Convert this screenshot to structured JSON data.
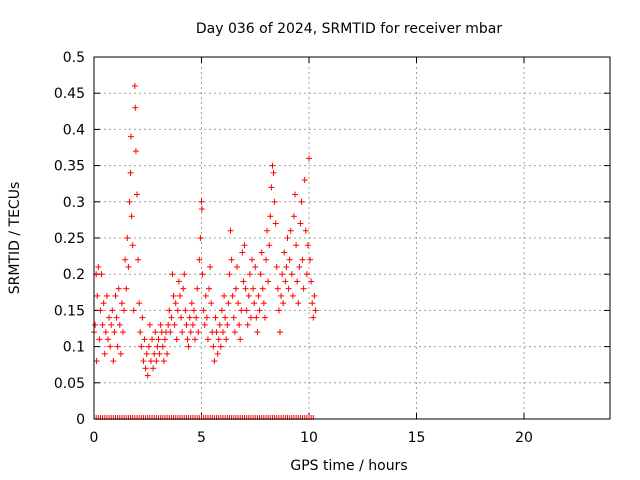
{
  "chart_data": {
    "type": "scatter",
    "title": "Day 036 of 2024, SRMTID for receiver mbar",
    "xlabel": "GPS time / hours",
    "ylabel": "SRMTID / TECUs",
    "xlim": [
      0,
      24
    ],
    "ylim": [
      0,
      0.5
    ],
    "xticks": [
      0,
      5,
      10,
      15,
      20
    ],
    "xtick_labels": [
      "0",
      "5",
      "10",
      "15",
      "20"
    ],
    "yticks": [
      0,
      0.05,
      0.1,
      0.15,
      0.2,
      0.25,
      0.3,
      0.35,
      0.4,
      0.45,
      0.5
    ],
    "ytick_labels": [
      "0",
      "0.05",
      "0.1",
      "0.15",
      "0.2",
      "0.25",
      "0.3",
      "0.35",
      "0.4",
      "0.45",
      "0.5"
    ],
    "grid": true,
    "marker": "+",
    "color": "#ff0000",
    "series": [
      {
        "name": "SRMTID",
        "points": [
          [
            0.0,
            0.12
          ],
          [
            0.05,
            0.13
          ],
          [
            0.1,
            0.2
          ],
          [
            0.12,
            0.08
          ],
          [
            0.15,
            0.17
          ],
          [
            0.2,
            0.21
          ],
          [
            0.25,
            0.11
          ],
          [
            0.3,
            0.15
          ],
          [
            0.35,
            0.2
          ],
          [
            0.4,
            0.13
          ],
          [
            0.45,
            0.16
          ],
          [
            0.5,
            0.09
          ],
          [
            0.55,
            0.12
          ],
          [
            0.6,
            0.17
          ],
          [
            0.65,
            0.11
          ],
          [
            0.7,
            0.14
          ],
          [
            0.75,
            0.1
          ],
          [
            0.8,
            0.13
          ],
          [
            0.85,
            0.15
          ],
          [
            0.9,
            0.08
          ],
          [
            0.95,
            0.12
          ],
          [
            1.0,
            0.17
          ],
          [
            1.05,
            0.14
          ],
          [
            1.1,
            0.1
          ],
          [
            1.15,
            0.18
          ],
          [
            1.2,
            0.13
          ],
          [
            1.25,
            0.09
          ],
          [
            1.3,
            0.16
          ],
          [
            1.35,
            0.12
          ],
          [
            1.4,
            0.15
          ],
          [
            1.45,
            0.22
          ],
          [
            1.5,
            0.18
          ],
          [
            1.55,
            0.25
          ],
          [
            1.6,
            0.21
          ],
          [
            1.65,
            0.3
          ],
          [
            1.7,
            0.34
          ],
          [
            1.72,
            0.39
          ],
          [
            1.75,
            0.28
          ],
          [
            1.8,
            0.24
          ],
          [
            1.85,
            0.15
          ],
          [
            1.9,
            0.46
          ],
          [
            1.92,
            0.43
          ],
          [
            1.95,
            0.37
          ],
          [
            2.0,
            0.31
          ],
          [
            2.05,
            0.22
          ],
          [
            2.1,
            0.16
          ],
          [
            2.15,
            0.12
          ],
          [
            2.2,
            0.1
          ],
          [
            2.25,
            0.14
          ],
          [
            2.3,
            0.08
          ],
          [
            2.35,
            0.11
          ],
          [
            2.4,
            0.07
          ],
          [
            2.45,
            0.09
          ],
          [
            2.5,
            0.06
          ],
          [
            2.55,
            0.1
          ],
          [
            2.6,
            0.13
          ],
          [
            2.65,
            0.08
          ],
          [
            2.7,
            0.11
          ],
          [
            2.75,
            0.07
          ],
          [
            2.8,
            0.09
          ],
          [
            2.85,
            0.12
          ],
          [
            2.9,
            0.08
          ],
          [
            2.95,
            0.1
          ],
          [
            3.0,
            0.11
          ],
          [
            3.05,
            0.09
          ],
          [
            3.1,
            0.13
          ],
          [
            3.15,
            0.12
          ],
          [
            3.2,
            0.1
          ],
          [
            3.25,
            0.08
          ],
          [
            3.3,
            0.11
          ],
          [
            3.35,
            0.12
          ],
          [
            3.4,
            0.09
          ],
          [
            3.45,
            0.13
          ],
          [
            3.5,
            0.15
          ],
          [
            3.55,
            0.12
          ],
          [
            3.6,
            0.14
          ],
          [
            3.65,
            0.2
          ],
          [
            3.7,
            0.17
          ],
          [
            3.75,
            0.13
          ],
          [
            3.8,
            0.16
          ],
          [
            3.85,
            0.11
          ],
          [
            3.9,
            0.15
          ],
          [
            3.95,
            0.19
          ],
          [
            4.0,
            0.17
          ],
          [
            4.05,
            0.14
          ],
          [
            4.1,
            0.12
          ],
          [
            4.15,
            0.18
          ],
          [
            4.2,
            0.2
          ],
          [
            4.25,
            0.15
          ],
          [
            4.3,
            0.13
          ],
          [
            4.35,
            0.11
          ],
          [
            4.4,
            0.1
          ],
          [
            4.45,
            0.14
          ],
          [
            4.5,
            0.12
          ],
          [
            4.55,
            0.16
          ],
          [
            4.6,
            0.13
          ],
          [
            4.65,
            0.15
          ],
          [
            4.7,
            0.11
          ],
          [
            4.75,
            0.14
          ],
          [
            4.8,
            0.18
          ],
          [
            4.85,
            0.12
          ],
          [
            4.9,
            0.22
          ],
          [
            4.95,
            0.25
          ],
          [
            5.0,
            0.3
          ],
          [
            5.02,
            0.29
          ],
          [
            5.05,
            0.2
          ],
          [
            5.1,
            0.15
          ],
          [
            5.15,
            0.13
          ],
          [
            5.2,
            0.17
          ],
          [
            5.25,
            0.14
          ],
          [
            5.3,
            0.11
          ],
          [
            5.35,
            0.18
          ],
          [
            5.4,
            0.21
          ],
          [
            5.45,
            0.16
          ],
          [
            5.5,
            0.12
          ],
          [
            5.55,
            0.1
          ],
          [
            5.6,
            0.08
          ],
          [
            5.65,
            0.14
          ],
          [
            5.7,
            0.12
          ],
          [
            5.75,
            0.09
          ],
          [
            5.8,
            0.11
          ],
          [
            5.85,
            0.13
          ],
          [
            5.9,
            0.1
          ],
          [
            5.95,
            0.15
          ],
          [
            6.0,
            0.12
          ],
          [
            6.05,
            0.17
          ],
          [
            6.1,
            0.14
          ],
          [
            6.15,
            0.11
          ],
          [
            6.2,
            0.13
          ],
          [
            6.25,
            0.16
          ],
          [
            6.3,
            0.2
          ],
          [
            6.35,
            0.26
          ],
          [
            6.4,
            0.22
          ],
          [
            6.45,
            0.17
          ],
          [
            6.5,
            0.14
          ],
          [
            6.55,
            0.12
          ],
          [
            6.6,
            0.18
          ],
          [
            6.65,
            0.21
          ],
          [
            6.7,
            0.16
          ],
          [
            6.75,
            0.13
          ],
          [
            6.8,
            0.11
          ],
          [
            6.85,
            0.15
          ],
          [
            6.9,
            0.23
          ],
          [
            6.95,
            0.19
          ],
          [
            7.0,
            0.24
          ],
          [
            7.05,
            0.18
          ],
          [
            7.1,
            0.15
          ],
          [
            7.15,
            0.13
          ],
          [
            7.2,
            0.17
          ],
          [
            7.25,
            0.2
          ],
          [
            7.3,
            0.14
          ],
          [
            7.35,
            0.22
          ],
          [
            7.4,
            0.18
          ],
          [
            7.45,
            0.16
          ],
          [
            7.5,
            0.21
          ],
          [
            7.55,
            0.14
          ],
          [
            7.6,
            0.12
          ],
          [
            7.65,
            0.17
          ],
          [
            7.7,
            0.15
          ],
          [
            7.75,
            0.2
          ],
          [
            7.8,
            0.23
          ],
          [
            7.85,
            0.18
          ],
          [
            7.9,
            0.16
          ],
          [
            7.95,
            0.14
          ],
          [
            8.0,
            0.22
          ],
          [
            8.05,
            0.26
          ],
          [
            8.1,
            0.19
          ],
          [
            8.15,
            0.24
          ],
          [
            8.2,
            0.28
          ],
          [
            8.25,
            0.32
          ],
          [
            8.3,
            0.35
          ],
          [
            8.35,
            0.34
          ],
          [
            8.4,
            0.3
          ],
          [
            8.45,
            0.27
          ],
          [
            8.5,
            0.21
          ],
          [
            8.55,
            0.18
          ],
          [
            8.6,
            0.15
          ],
          [
            8.65,
            0.12
          ],
          [
            8.7,
            0.17
          ],
          [
            8.75,
            0.2
          ],
          [
            8.8,
            0.16
          ],
          [
            8.85,
            0.23
          ],
          [
            8.9,
            0.19
          ],
          [
            8.95,
            0.21
          ],
          [
            9.0,
            0.25
          ],
          [
            9.05,
            0.18
          ],
          [
            9.1,
            0.22
          ],
          [
            9.15,
            0.26
          ],
          [
            9.2,
            0.2
          ],
          [
            9.25,
            0.17
          ],
          [
            9.3,
            0.28
          ],
          [
            9.35,
            0.31
          ],
          [
            9.4,
            0.24
          ],
          [
            9.45,
            0.19
          ],
          [
            9.5,
            0.16
          ],
          [
            9.55,
            0.21
          ],
          [
            9.6,
            0.27
          ],
          [
            9.65,
            0.3
          ],
          [
            9.7,
            0.22
          ],
          [
            9.75,
            0.18
          ],
          [
            9.8,
            0.33
          ],
          [
            9.85,
            0.26
          ],
          [
            9.9,
            0.2
          ],
          [
            9.95,
            0.24
          ],
          [
            10.0,
            0.36
          ],
          [
            10.05,
            0.22
          ],
          [
            10.1,
            0.19
          ],
          [
            10.15,
            0.16
          ],
          [
            10.2,
            0.14
          ],
          [
            10.25,
            0.17
          ],
          [
            10.3,
            0.15
          ]
        ]
      }
    ],
    "zero_markers_x": [
      0.1,
      0.2,
      0.3,
      0.4,
      0.5,
      0.6,
      0.7,
      0.8,
      0.9,
      1.0,
      1.1,
      1.2,
      1.3,
      1.4,
      1.5,
      1.6,
      1.7,
      1.8,
      1.9,
      2.0,
      2.1,
      2.2,
      2.3,
      2.4,
      2.5,
      2.6,
      2.7,
      2.8,
      2.9,
      3.0,
      3.1,
      3.2,
      3.3,
      3.4,
      3.5,
      3.6,
      3.7,
      3.8,
      3.9,
      4.0,
      4.1,
      4.2,
      4.3,
      4.4,
      4.5,
      4.6,
      4.7,
      4.8,
      4.9,
      5.0,
      5.1,
      5.2,
      5.3,
      5.4,
      5.5,
      5.6,
      5.7,
      5.8,
      5.9,
      6.0,
      6.1,
      6.2,
      6.3,
      6.4,
      6.5,
      6.6,
      6.7,
      6.8,
      6.9,
      7.0,
      7.1,
      7.2,
      7.3,
      7.4,
      7.5,
      7.6,
      7.7,
      7.8,
      7.9,
      8.0,
      8.1,
      8.2,
      8.3,
      8.4,
      8.5,
      8.6,
      8.7,
      8.8,
      8.9,
      9.0,
      9.1,
      9.2,
      9.3,
      9.4,
      9.5,
      9.6,
      9.7,
      9.8,
      9.9,
      10.0,
      10.1,
      10.2
    ]
  }
}
